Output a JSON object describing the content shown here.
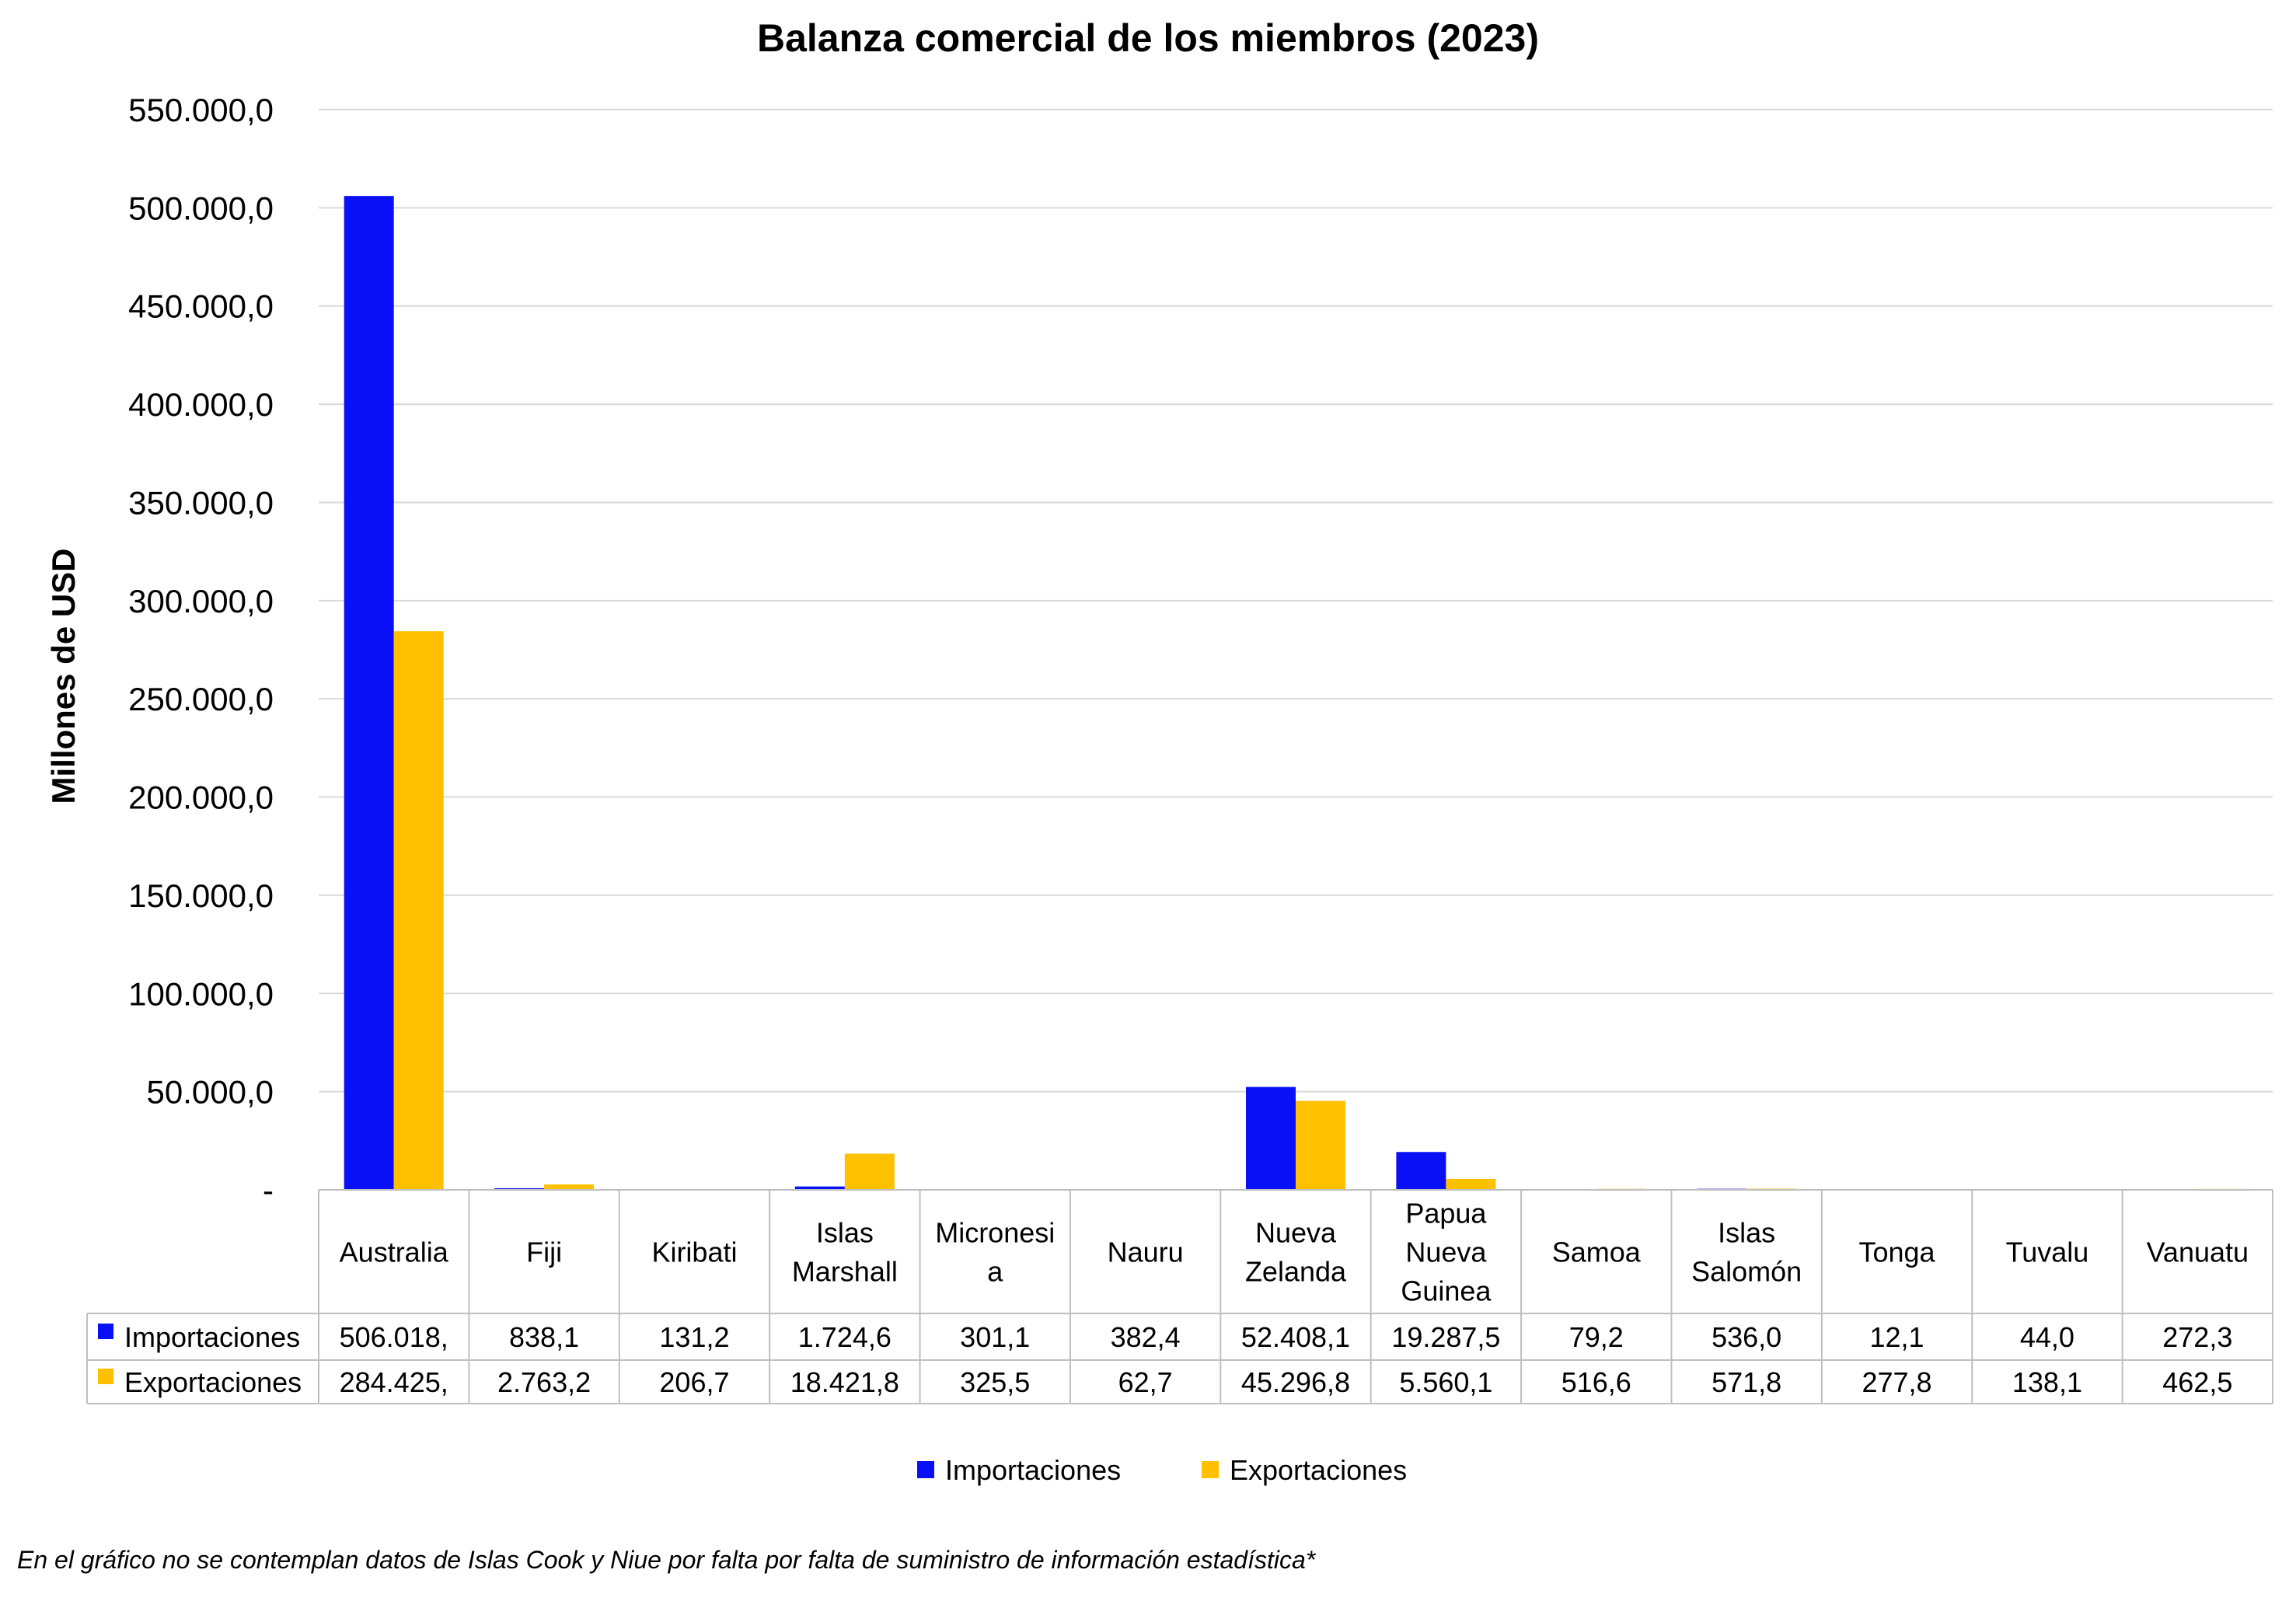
{
  "colors": {
    "imports": "#0A10F5",
    "exports": "#FFC000",
    "grid": "#D9D9D9",
    "axis": "#BFBFBF"
  },
  "chart_data": {
    "type": "bar",
    "title": "Balanza comercial de los miembros (2023)",
    "ylabel": "Millones de USD",
    "xlabel": "",
    "ylim": [
      0,
      550000
    ],
    "yticks": [
      0,
      50000,
      100000,
      150000,
      200000,
      250000,
      300000,
      350000,
      400000,
      450000,
      500000,
      550000
    ],
    "ytick_labels": [
      "-",
      "50.000,0",
      "100.000,0",
      "150.000,0",
      "200.000,0",
      "250.000,0",
      "300.000,0",
      "350.000,0",
      "400.000,0",
      "450.000,0",
      "500.000,0",
      "550.000,0"
    ],
    "grid": true,
    "legend": "bottom",
    "categories": [
      [
        "Australia"
      ],
      [
        "Fiji"
      ],
      [
        "Kiribati"
      ],
      [
        "Islas",
        "Marshall"
      ],
      [
        "Micronesi",
        "a"
      ],
      [
        "Nauru"
      ],
      [
        "Nueva",
        "Zelanda"
      ],
      [
        "Papua",
        "Nueva",
        "Guinea"
      ],
      [
        "Samoa"
      ],
      [
        "Islas",
        "Salomón"
      ],
      [
        "Tonga"
      ],
      [
        "Tuvalu"
      ],
      [
        "Vanuatu"
      ]
    ],
    "series": [
      {
        "name": "Importaciones",
        "values": [
          506018,
          838.1,
          131.2,
          1724.6,
          301.1,
          382.4,
          52408.1,
          19287.5,
          79.2,
          536.0,
          12.1,
          44.0,
          272.3
        ],
        "labels": [
          "506.018,",
          "838,1",
          "131,2",
          "1.724,6",
          "301,1",
          "382,4",
          "52.408,1",
          "19.287,5",
          "79,2",
          "536,0",
          "12,1",
          "44,0",
          "272,3"
        ]
      },
      {
        "name": "Exportaciones",
        "values": [
          284425,
          2763.2,
          206.7,
          18421.8,
          325.5,
          62.7,
          45296.8,
          5560.1,
          516.6,
          571.8,
          277.8,
          138.1,
          462.5
        ],
        "labels": [
          "284.425,",
          "2.763,2",
          "206,7",
          "18.421,8",
          "325,5",
          "62,7",
          "45.296,8",
          "5.560,1",
          "516,6",
          "571,8",
          "277,8",
          "138,1",
          "462,5"
        ]
      }
    ]
  },
  "footnote": "En el gráfico no se contemplan datos de Islas Cook y Niue por falta por falta de suministro de información estadística*"
}
